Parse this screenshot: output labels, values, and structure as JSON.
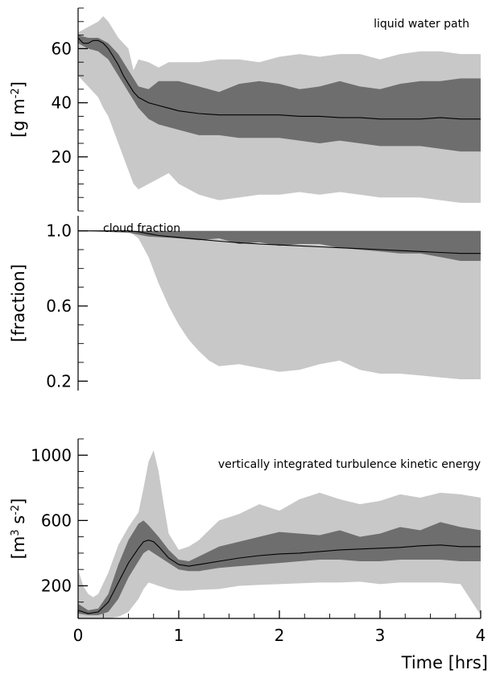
{
  "chart_data": [
    {
      "type": "area",
      "title": "liquid water path",
      "ylabel": "[g m-2]",
      "ylabel_base": "[g m",
      "ylabel_sup": "-2",
      "ylabel_end": "]",
      "ylim": [
        0,
        75
      ],
      "xlim": [
        0,
        4
      ],
      "yticks": [
        20,
        40,
        60
      ],
      "ytick_labels": [
        "20",
        "40",
        "60"
      ],
      "band_color_outer": "#c8c8c8",
      "band_color_inner": "#6e6e6e",
      "line_color": "#000000",
      "series": [
        {
          "name": "outer",
          "x": [
            0,
            0.1,
            0.2,
            0.25,
            0.3,
            0.4,
            0.5,
            0.55,
            0.6,
            0.7,
            0.8,
            0.9,
            1.0,
            1.2,
            1.4,
            1.6,
            1.8,
            2.0,
            2.2,
            2.4,
            2.6,
            2.8,
            3.0,
            3.2,
            3.4,
            3.6,
            3.8,
            4.0
          ],
          "upper": [
            66,
            68,
            70,
            72,
            70,
            64,
            60,
            52,
            56,
            55,
            53,
            55,
            55,
            55,
            56,
            56,
            55,
            57,
            58,
            57,
            58,
            58,
            56,
            58,
            59,
            59,
            58,
            58
          ],
          "lower": [
            50,
            46,
            42,
            38,
            35,
            25,
            15,
            10,
            8,
            10,
            12,
            14,
            10,
            6,
            4,
            5,
            6,
            6,
            7,
            6,
            7,
            6,
            5,
            5,
            5,
            4,
            3,
            3
          ]
        },
        {
          "name": "inner",
          "x": [
            0,
            0.1,
            0.2,
            0.3,
            0.4,
            0.5,
            0.6,
            0.7,
            0.8,
            1.0,
            1.2,
            1.4,
            1.6,
            1.8,
            2.0,
            2.2,
            2.4,
            2.6,
            2.8,
            3.0,
            3.2,
            3.4,
            3.6,
            3.8,
            4.0
          ],
          "upper": [
            65,
            64,
            64,
            62,
            58,
            52,
            46,
            45,
            48,
            48,
            46,
            44,
            47,
            48,
            47,
            45,
            46,
            48,
            46,
            45,
            47,
            48,
            48,
            49,
            49
          ],
          "lower": [
            62,
            60,
            59,
            56,
            50,
            44,
            38,
            34,
            32,
            30,
            28,
            28,
            27,
            27,
            27,
            26,
            25,
            26,
            25,
            24,
            24,
            24,
            23,
            22,
            22
          ]
        },
        {
          "name": "mean",
          "x": [
            0,
            0.05,
            0.1,
            0.15,
            0.2,
            0.25,
            0.3,
            0.35,
            0.4,
            0.45,
            0.5,
            0.55,
            0.6,
            0.7,
            0.8,
            0.9,
            1.0,
            1.2,
            1.4,
            1.6,
            1.8,
            2.0,
            2.2,
            2.4,
            2.6,
            2.8,
            3.0,
            3.2,
            3.4,
            3.6,
            3.8,
            4.0
          ],
          "y": [
            64,
            62,
            62,
            63,
            63,
            62,
            60,
            57,
            54,
            50,
            47,
            44,
            42,
            40,
            39,
            38,
            37,
            36,
            35.5,
            35.5,
            35.5,
            35.5,
            35,
            35,
            34.5,
            34.5,
            34,
            34,
            34,
            34.5,
            34,
            34
          ]
        }
      ]
    },
    {
      "type": "area",
      "title": "cloud fraction",
      "ylabel": "[fraction]",
      "ylim": [
        0.15,
        1.08
      ],
      "xlim": [
        0,
        4
      ],
      "yticks": [
        0.2,
        0.6,
        1.0
      ],
      "ytick_labels": [
        "0.2",
        "0.6",
        "1.0"
      ],
      "band_color_outer": "#c8c8c8",
      "band_color_inner": "#6e6e6e",
      "line_color": "#000000",
      "series": [
        {
          "name": "outer",
          "x": [
            0,
            0.5,
            0.6,
            0.7,
            0.8,
            0.9,
            1.0,
            1.1,
            1.2,
            1.3,
            1.4,
            1.6,
            1.8,
            2.0,
            2.2,
            2.4,
            2.6,
            2.8,
            3.0,
            3.2,
            3.4,
            3.6,
            3.8,
            4.0
          ],
          "upper": [
            1.0,
            1.0,
            1.0,
            1.0,
            1.0,
            1.0,
            1.0,
            1.0,
            1.0,
            1.0,
            1.0,
            1.0,
            1.0,
            1.0,
            1.0,
            1.0,
            1.0,
            1.0,
            1.0,
            1.0,
            1.0,
            1.0,
            1.0,
            1.0
          ],
          "lower": [
            1.0,
            1.0,
            0.96,
            0.86,
            0.72,
            0.6,
            0.5,
            0.42,
            0.36,
            0.31,
            0.28,
            0.29,
            0.27,
            0.25,
            0.26,
            0.29,
            0.31,
            0.26,
            0.24,
            0.24,
            0.23,
            0.22,
            0.21,
            0.21
          ]
        },
        {
          "name": "inner",
          "x": [
            0,
            0.5,
            0.7,
            1.0,
            1.2,
            1.4,
            1.6,
            1.8,
            2.0,
            2.2,
            2.4,
            2.6,
            2.8,
            3.0,
            3.2,
            3.4,
            3.6,
            3.8,
            4.0
          ],
          "upper": [
            1.0,
            1.0,
            1.0,
            1.0,
            1.0,
            1.0,
            1.0,
            1.0,
            1.0,
            1.0,
            1.0,
            1.0,
            1.0,
            1.0,
            1.0,
            1.0,
            1.0,
            1.0,
            1.0
          ],
          "lower": [
            1.0,
            0.99,
            0.97,
            0.96,
            0.95,
            0.96,
            0.93,
            0.94,
            0.92,
            0.93,
            0.93,
            0.91,
            0.9,
            0.89,
            0.88,
            0.88,
            0.86,
            0.84,
            0.84
          ]
        },
        {
          "name": "mean",
          "x": [
            0,
            0.3,
            0.5,
            0.6,
            0.7,
            0.8,
            1.0,
            1.2,
            1.4,
            1.6,
            1.8,
            2.0,
            2.2,
            2.4,
            2.6,
            2.8,
            3.0,
            3.2,
            3.4,
            3.6,
            3.8,
            4.0
          ],
          "y": [
            1.0,
            1.0,
            1.0,
            0.995,
            0.985,
            0.975,
            0.965,
            0.955,
            0.945,
            0.937,
            0.93,
            0.925,
            0.92,
            0.915,
            0.91,
            0.905,
            0.9,
            0.895,
            0.89,
            0.885,
            0.88,
            0.88
          ]
        }
      ]
    },
    {
      "type": "area",
      "title": "vertically integrated turbulence kinetic energy",
      "ylabel": "[m3 s-2]",
      "ylabel_base": "[m",
      "ylabel_sup": "3",
      "ylabel_mid": " s",
      "ylabel_sup2": "-2",
      "ylabel_end": "]",
      "ylim": [
        0,
        1100
      ],
      "xlim": [
        0,
        4
      ],
      "xlabel": "Time [hrs]",
      "xticks": [
        0,
        1,
        2,
        3,
        4
      ],
      "xtick_labels": [
        "0",
        "1",
        "2",
        "3",
        "4"
      ],
      "yticks": [
        200,
        600,
        1000
      ],
      "ytick_labels": [
        "200",
        "600",
        "1000"
      ],
      "band_color_outer": "#c8c8c8",
      "band_color_inner": "#6e6e6e",
      "line_color": "#000000",
      "series": [
        {
          "name": "outer",
          "x": [
            0,
            0.05,
            0.1,
            0.15,
            0.2,
            0.3,
            0.4,
            0.5,
            0.6,
            0.65,
            0.7,
            0.75,
            0.8,
            0.85,
            0.9,
            1.0,
            1.1,
            1.2,
            1.4,
            1.6,
            1.8,
            2.0,
            2.2,
            2.4,
            2.6,
            2.8,
            3.0,
            3.2,
            3.4,
            3.6,
            3.8,
            4.0
          ],
          "upper": [
            300,
            200,
            150,
            130,
            150,
            280,
            450,
            560,
            650,
            800,
            960,
            1030,
            900,
            700,
            520,
            420,
            440,
            480,
            600,
            640,
            700,
            660,
            730,
            770,
            730,
            700,
            720,
            760,
            740,
            770,
            760,
            740
          ],
          "lower": [
            0,
            0,
            0,
            0,
            0,
            0,
            10,
            40,
            120,
            180,
            220,
            210,
            200,
            190,
            180,
            170,
            170,
            175,
            180,
            200,
            205,
            210,
            215,
            220,
            220,
            225,
            210,
            220,
            220,
            220,
            210,
            20
          ]
        },
        {
          "name": "inner",
          "x": [
            0,
            0.1,
            0.2,
            0.3,
            0.4,
            0.5,
            0.6,
            0.65,
            0.7,
            0.8,
            0.9,
            1.0,
            1.1,
            1.2,
            1.4,
            1.6,
            1.8,
            2.0,
            2.2,
            2.4,
            2.6,
            2.8,
            3.0,
            3.2,
            3.4,
            3.6,
            3.8,
            4.0
          ],
          "upper": [
            90,
            50,
            60,
            150,
            330,
            480,
            580,
            600,
            570,
            500,
            420,
            360,
            350,
            380,
            440,
            470,
            500,
            530,
            520,
            510,
            540,
            500,
            520,
            560,
            540,
            590,
            560,
            540
          ],
          "lower": [
            30,
            20,
            20,
            40,
            120,
            250,
            350,
            400,
            420,
            380,
            340,
            300,
            290,
            290,
            310,
            320,
            330,
            340,
            350,
            360,
            360,
            350,
            350,
            360,
            360,
            360,
            350,
            350
          ]
        },
        {
          "name": "mean",
          "x": [
            0,
            0.1,
            0.2,
            0.3,
            0.4,
            0.5,
            0.6,
            0.65,
            0.7,
            0.75,
            0.8,
            0.9,
            1.0,
            1.1,
            1.2,
            1.4,
            1.6,
            1.8,
            2.0,
            2.2,
            2.4,
            2.6,
            2.8,
            3.0,
            3.2,
            3.4,
            3.6,
            3.8,
            4.0
          ],
          "y": [
            50,
            30,
            40,
            100,
            220,
            340,
            430,
            470,
            480,
            470,
            440,
            370,
            330,
            320,
            330,
            350,
            370,
            385,
            395,
            400,
            410,
            420,
            425,
            430,
            435,
            445,
            450,
            440,
            440
          ]
        }
      ]
    }
  ]
}
